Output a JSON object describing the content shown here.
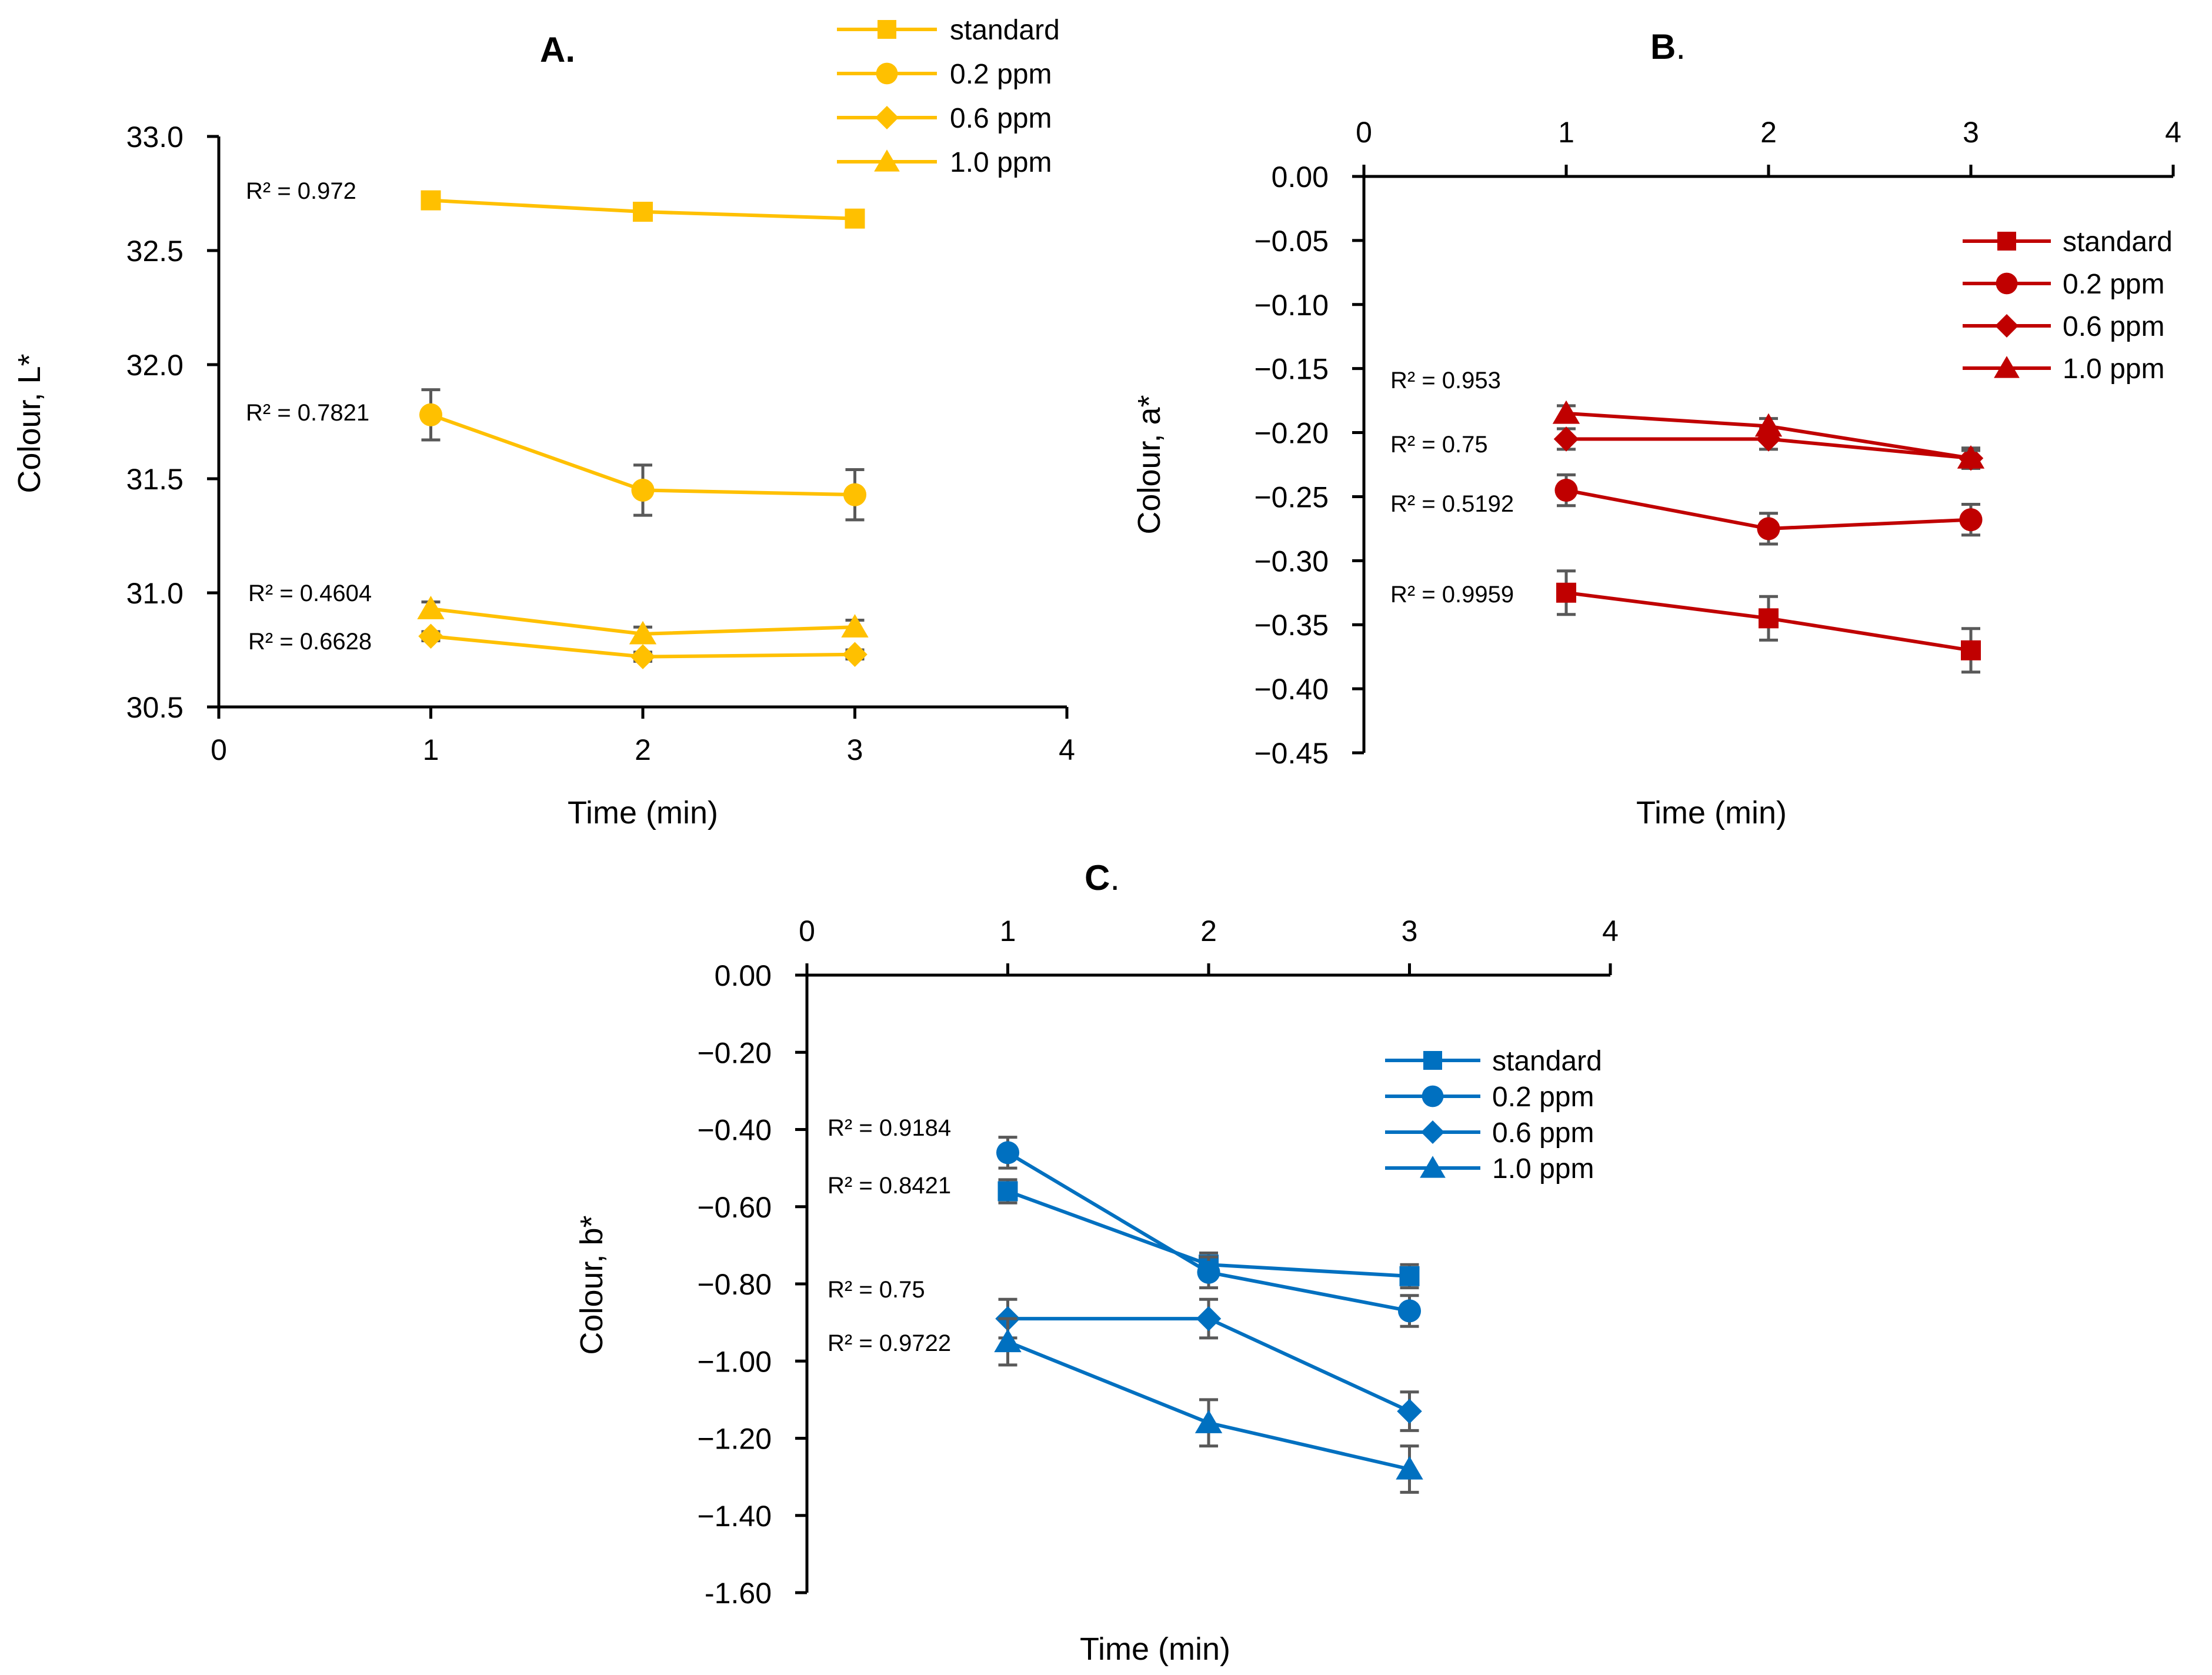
{
  "figure": {
    "panels": [
      {
        "letter": "A",
        "dot": "."
      },
      {
        "letter": "B",
        "dot": "."
      },
      {
        "letter": "C",
        "dot": "."
      }
    ]
  },
  "chart_data": [
    {
      "panel": "A",
      "type": "line",
      "title": "A.",
      "xlabel": "Time (min)",
      "ylabel": "Colour, L*",
      "xlim": [
        0,
        4
      ],
      "ylim": [
        30.5,
        33.0
      ],
      "x_axis_position": "bottom",
      "xticks": [
        "0",
        "1",
        "2",
        "3",
        "4"
      ],
      "yticks": [
        "30.5",
        "31.0",
        "31.5",
        "32.0",
        "32.5",
        "33.0"
      ],
      "color": "#FFC000",
      "legend_position": "top-right",
      "x": [
        1,
        2,
        3
      ],
      "series": [
        {
          "name": "standard",
          "marker": "square",
          "values": [
            32.72,
            32.67,
            32.64
          ],
          "errors": [
            0.01,
            0.01,
            0.01
          ],
          "r2": "R² = 0.972"
        },
        {
          "name": "0.2 ppm",
          "marker": "circle",
          "values": [
            31.78,
            31.45,
            31.43
          ],
          "errors": [
            0.11,
            0.11,
            0.11
          ],
          "r2": "R² = 0.7821"
        },
        {
          "name": "0.6 ppm",
          "marker": "diamond",
          "values": [
            30.81,
            30.72,
            30.73
          ],
          "errors": [
            0.02,
            0.02,
            0.02
          ],
          "r2": "R² = 0.6628"
        },
        {
          "name": "1.0 ppm",
          "marker": "triangle",
          "values": [
            30.93,
            30.82,
            30.85
          ],
          "errors": [
            0.03,
            0.03,
            0.03
          ],
          "r2": "R² = 0.4604"
        }
      ]
    },
    {
      "panel": "B",
      "type": "line",
      "title": "B.",
      "xlabel": "Time (min)",
      "ylabel": "Colour, a*",
      "xlim": [
        0,
        4
      ],
      "ylim": [
        -0.45,
        0.0
      ],
      "x_axis_position": "top",
      "xticks": [
        "0",
        "1",
        "2",
        "3",
        "4"
      ],
      "yticks": [
        "0.00",
        "−0.05",
        "−0.10",
        "−0.15",
        "−0.20",
        "−0.25",
        "−0.30",
        "−0.35",
        "−0.40",
        "−0.45"
      ],
      "color": "#C00000",
      "legend_position": "top-right",
      "x": [
        1,
        2,
        3
      ],
      "series": [
        {
          "name": "standard",
          "marker": "square",
          "values": [
            -0.325,
            -0.345,
            -0.37
          ],
          "errors": [
            0.017,
            0.017,
            0.017
          ],
          "r2": "R² = 0.9959"
        },
        {
          "name": "0.2 ppm",
          "marker": "circle",
          "values": [
            -0.245,
            -0.275,
            -0.268
          ],
          "errors": [
            0.012,
            0.012,
            0.012
          ],
          "r2": "R² = 0.5192"
        },
        {
          "name": "0.6 ppm",
          "marker": "diamond",
          "values": [
            -0.205,
            -0.205,
            -0.22
          ],
          "errors": [
            0.008,
            0.008,
            0.008
          ],
          "r2": "R² = 0.75"
        },
        {
          "name": "1.0 ppm",
          "marker": "triangle",
          "values": [
            -0.185,
            -0.195,
            -0.22
          ],
          "errors": [
            0.006,
            0.006,
            0.006
          ],
          "r2": "R² = 0.953"
        }
      ]
    },
    {
      "panel": "C",
      "type": "line",
      "title": "C.",
      "xlabel": "Time (min)",
      "ylabel": "Colour, b*",
      "xlim": [
        0,
        4
      ],
      "ylim": [
        -1.6,
        0.0
      ],
      "x_axis_position": "top",
      "xticks": [
        "0",
        "1",
        "2",
        "3",
        "4"
      ],
      "yticks": [
        "0.00",
        "−0.20",
        "−0.40",
        "−0.60",
        "−0.80",
        "−1.00",
        "−1.20",
        "−1.40",
        "-1.60"
      ],
      "color": "#0070C0",
      "legend_position": "top-right",
      "x": [
        1,
        2,
        3
      ],
      "series": [
        {
          "name": "standard",
          "marker": "square",
          "values": [
            -0.56,
            -0.75,
            -0.78
          ],
          "errors": [
            0.03,
            0.03,
            0.03
          ],
          "r2": "R² = 0.8421"
        },
        {
          "name": "0.2 ppm",
          "marker": "circle",
          "values": [
            -0.46,
            -0.77,
            -0.87
          ],
          "errors": [
            0.04,
            0.04,
            0.04
          ],
          "r2": "R² = 0.9184"
        },
        {
          "name": "0.6 ppm",
          "marker": "diamond",
          "values": [
            -0.89,
            -0.89,
            -1.13
          ],
          "errors": [
            0.05,
            0.05,
            0.05
          ],
          "r2": "R² = 0.75"
        },
        {
          "name": "1.0 ppm",
          "marker": "triangle",
          "values": [
            -0.95,
            -1.16,
            -1.28
          ],
          "errors": [
            0.06,
            0.06,
            0.06
          ],
          "r2": "R² = 0.9722"
        }
      ]
    }
  ]
}
